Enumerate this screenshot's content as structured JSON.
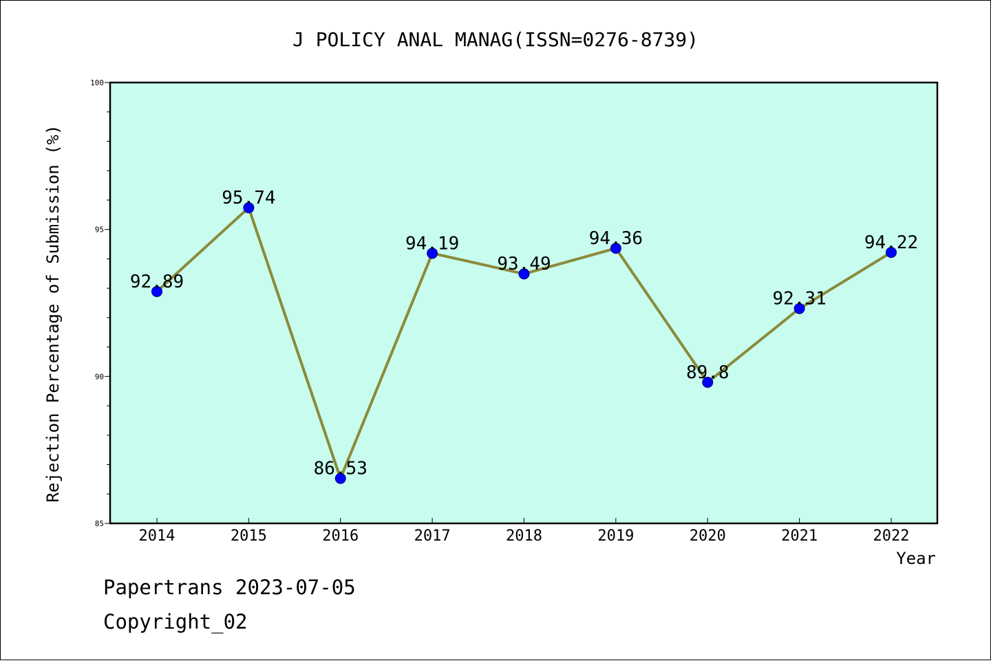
{
  "chart_data": {
    "type": "line",
    "title": "J POLICY ANAL MANAG(ISSN=0276-8739)",
    "xlabel": "Year",
    "ylabel": "Rejection Percentage of Submission (%)",
    "categories": [
      "2014",
      "2015",
      "2016",
      "2017",
      "2018",
      "2019",
      "2020",
      "2021",
      "2022"
    ],
    "values": [
      92.89,
      95.74,
      86.53,
      94.19,
      93.49,
      94.36,
      89.8,
      92.31,
      94.22
    ],
    "data_labels": [
      "92.89",
      "95.74",
      "86.53",
      "94.19",
      "93.49",
      "94.36",
      "89.8",
      "92.31",
      "94.22"
    ],
    "ylim": [
      85,
      100
    ],
    "yticks": [
      "85",
      "90",
      "95",
      "100"
    ],
    "grid": false,
    "colors": {
      "plot_background": "#c8fcee",
      "line": "#8b8a3b",
      "marker": "#0000ff"
    }
  },
  "footer": {
    "line1": "Papertrans 2023-07-05",
    "line2": "Copyright_02"
  }
}
